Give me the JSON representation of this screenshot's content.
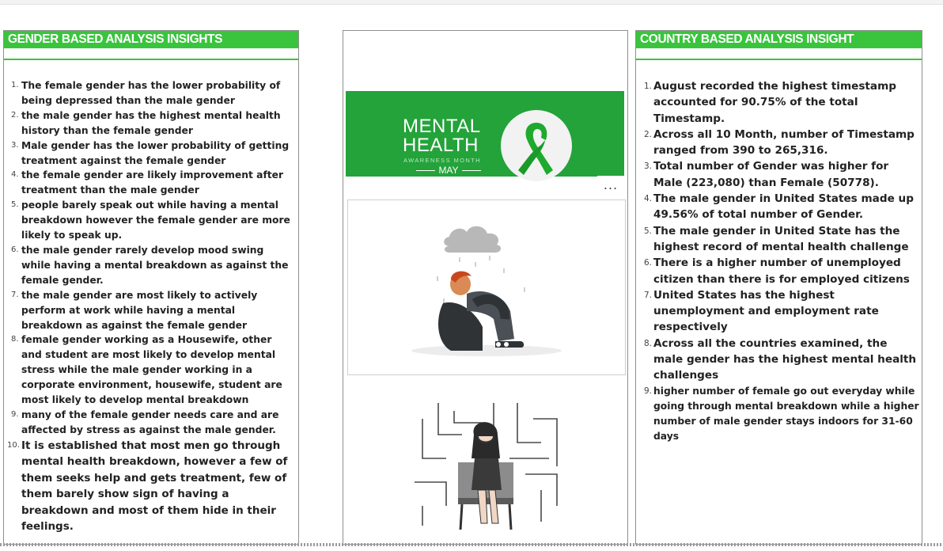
{
  "left_panel": {
    "title": "GENDER BASED ANALYSIS INSIGHTS",
    "items": [
      {
        "num": "1.",
        "text": " The female gender has the lower probability of being depressed than the male gender"
      },
      {
        "num": "2.",
        "text": "the male gender has the highest mental health history than the female gender"
      },
      {
        "num": "3.",
        "text": "Male gender has the lower probability of getting treatment against the female gender"
      },
      {
        "num": "4.",
        "text": "the female gender are likely improvement after treatment than the male gender"
      },
      {
        "num": "5.",
        "text": "people barely speak out while having a mental breakdown however the female gender are more likely to speak up."
      },
      {
        "num": "6.",
        "text": "the male gender rarely develop mood swing while having a mental breakdown as against the female gender."
      },
      {
        "num": "7.",
        "text": "the male gender are most likely to actively perform at work while having a mental breakdown as against the female gender"
      },
      {
        "num": "8.",
        "text": "female gender working as a Housewife, other and student are most likely to develop mental stress while the male gender working in a corporate environment, housewife, student are most likely to develop mental breakdown"
      },
      {
        "num": "9.",
        "text": "many of the female gender needs care and are affected by stress as against the male gender."
      },
      {
        "num": "10.",
        "text": "It is established that most men go through mental health breakdown, however a few of them seeks help and gets treatment, few of them barely show sign of having a breakdown and most of them hide in their feelings."
      }
    ]
  },
  "middle_panel": {
    "banner": {
      "title_line1": "MENTAL",
      "title_line2": "HEALTH",
      "subtitle": "AWARENESS MONTH",
      "month": "MAY"
    },
    "more_label": "..."
  },
  "right_panel": {
    "title": "COUNTRY BASED ANALYSIS INSIGHT",
    "items": [
      {
        "num": "1.",
        "text": "August recorded the highest timestamp accounted for 90.75% of the total Timestamp."
      },
      {
        "num": "2.",
        "text": "Across all 10 Month, number of Timestamp ranged from 390 to 265,316."
      },
      {
        "num": "3.",
        "text": "Total number of Gender was higher for Male (223,080) than Female (50778)."
      },
      {
        "num": "4.",
        "text": "The male gender in United States made up 49.56% of total number of Gender."
      },
      {
        "num": "5.",
        "text": "The male gender in United State has the highest record of mental health challenge"
      },
      {
        "num": "6.",
        "text": "There is a higher number of unemployed citizen than there is for employed citizens"
      },
      {
        "num": "7.",
        "text": "United States has the highest unemployment and employment rate respectively"
      },
      {
        "num": "8.",
        "text": "Across all the countries examined, the male gender has the highest mental health challenges"
      },
      {
        "num": "9.",
        "text": "higher number of female go out everyday while going through mental breakdown while a higher number of male gender stays indoors for 31-60 days"
      }
    ]
  },
  "colors": {
    "accent_green": "#3ac43e",
    "banner_green": "#23a33a",
    "ribbon_green": "#1faa2e",
    "border_gray": "#8f8f8f"
  }
}
